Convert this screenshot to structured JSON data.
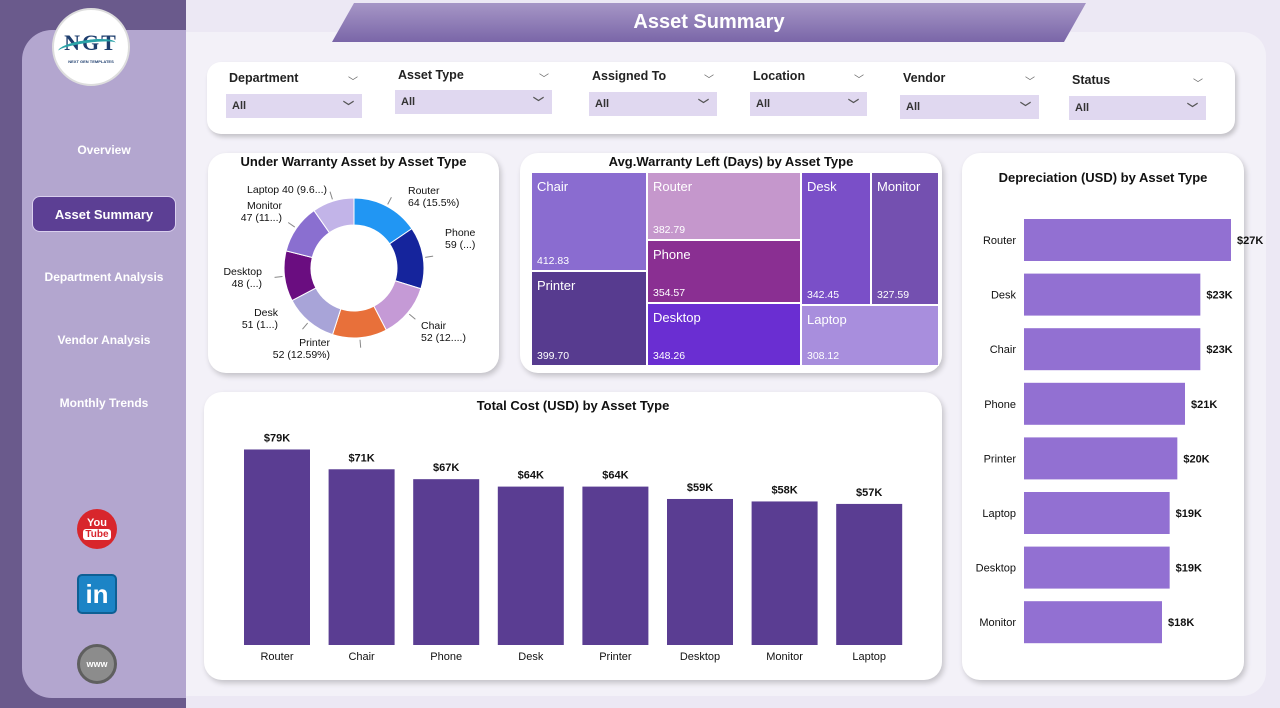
{
  "app": {
    "logo_text": "NGT",
    "logo_subtitle": "NEXT GEN TEMPLATES",
    "page_title": "Asset Summary"
  },
  "nav": {
    "items": [
      {
        "label": "Overview",
        "active": false
      },
      {
        "label": "Asset Summary",
        "active": true
      },
      {
        "label": "Department Analysis",
        "active": false
      },
      {
        "label": "Vendor Analysis",
        "active": false
      },
      {
        "label": "Monthly Trends",
        "active": false
      }
    ]
  },
  "social": {
    "youtube_you": "You",
    "youtube_tube": "Tube",
    "linkedin": "in",
    "website": "www"
  },
  "filters": [
    {
      "label": "Department",
      "value": "All"
    },
    {
      "label": "Asset Type",
      "value": "All"
    },
    {
      "label": "Assigned To",
      "value": "All"
    },
    {
      "label": "Location",
      "value": "All"
    },
    {
      "label": "Vendor",
      "value": "All"
    },
    {
      "label": "Status",
      "value": "All"
    }
  ],
  "colors": {
    "bar_dark": "#5a3d92",
    "bar_light": "#9270d2",
    "donut": [
      "#2196f3",
      "#15249c",
      "#c59ad6",
      "#e8703a",
      "#a8a4d8",
      "#6a0d80",
      "#8a6fd0",
      "#c2b4e8"
    ]
  },
  "chart_data": [
    {
      "type": "pie",
      "title": "Under Warranty Asset by Asset Type",
      "categories": [
        "Router",
        "Phone",
        "Chair",
        "Printer",
        "Desk",
        "Desktop",
        "Monitor",
        "Laptop"
      ],
      "values": [
        64,
        59,
        52,
        52,
        51,
        48,
        47,
        40
      ],
      "labels": [
        [
          "Router",
          "64 (15.5%)"
        ],
        [
          "Phone",
          "59 (...)"
        ],
        [
          "Chair",
          "52 (12....)"
        ],
        [
          "Printer",
          "52 (12.59%)"
        ],
        [
          "Desk",
          "51 (1...)"
        ],
        [
          "Desktop",
          "48 (...)"
        ],
        [
          "Monitor",
          "47 (11...)"
        ],
        [
          "Laptop 40 (9.6...)"
        ]
      ]
    },
    {
      "type": "heatmap",
      "title": "Avg.Warranty Left (Days) by Asset Type",
      "categories": [
        "Chair",
        "Printer",
        "Router",
        "Phone",
        "Desktop",
        "Desk",
        "Monitor",
        "Laptop"
      ],
      "values": [
        412.83,
        399.7,
        382.79,
        354.57,
        348.26,
        342.45,
        327.59,
        308.12
      ],
      "value_labels": [
        "412.83",
        "399.70",
        "382.79",
        "354.57",
        "348.26",
        "342.45",
        "327.59",
        "308.12"
      ]
    },
    {
      "type": "bar",
      "orientation": "horizontal",
      "title": "Depreciation (USD) by Asset Type",
      "categories": [
        "Router",
        "Desk",
        "Chair",
        "Phone",
        "Printer",
        "Laptop",
        "Desktop",
        "Monitor"
      ],
      "values": [
        27,
        23,
        23,
        21,
        20,
        19,
        19,
        18
      ],
      "value_labels": [
        "$27K",
        "$23K",
        "$23K",
        "$21K",
        "$20K",
        "$19K",
        "$19K",
        "$18K"
      ],
      "xlim": [
        0,
        30
      ]
    },
    {
      "type": "bar",
      "title": "Total Cost (USD) by Asset Type",
      "categories": [
        "Router",
        "Chair",
        "Phone",
        "Desk",
        "Printer",
        "Desktop",
        "Monitor",
        "Laptop"
      ],
      "values": [
        79,
        71,
        67,
        64,
        64,
        59,
        58,
        57
      ],
      "value_labels": [
        "$79K",
        "$71K",
        "$67K",
        "$64K",
        "$64K",
        "$59K",
        "$58K",
        "$57K"
      ],
      "ylim": [
        0,
        80
      ]
    }
  ]
}
